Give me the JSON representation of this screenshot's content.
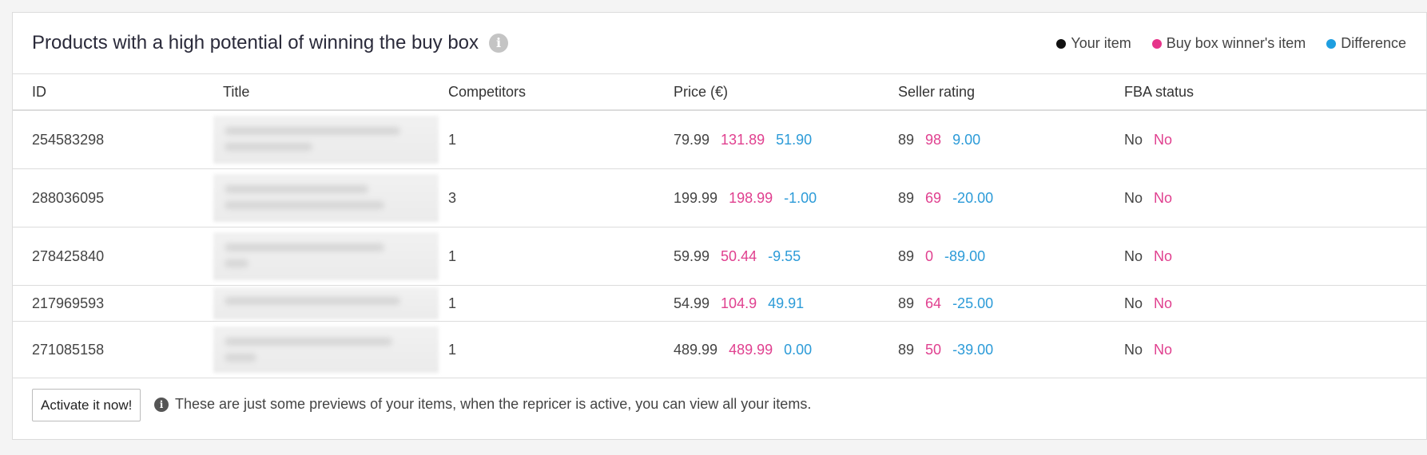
{
  "panel": {
    "title": "Products with a high potential of winning the buy box",
    "info_icon": "i"
  },
  "legend": {
    "your_item": "Your item",
    "winner_item": "Buy box winner's item",
    "difference": "Difference",
    "colors": {
      "your_item": "#111111",
      "winner_item": "#e6348a",
      "difference": "#1e9ee0"
    }
  },
  "table": {
    "headers": {
      "id": "ID",
      "title": "Title",
      "competitors": "Competitors",
      "price": "Price (€)",
      "seller_rating": "Seller rating",
      "fba_status": "FBA status"
    },
    "rows": [
      {
        "id": "254583298",
        "competitors": "1",
        "price": [
          "79.99",
          "131.89",
          "51.90"
        ],
        "rating": [
          "89",
          "98",
          "9.00"
        ],
        "fba": [
          "No",
          "No"
        ]
      },
      {
        "id": "288036095",
        "competitors": "3",
        "price": [
          "199.99",
          "198.99",
          "-1.00"
        ],
        "rating": [
          "89",
          "69",
          "-20.00"
        ],
        "fba": [
          "No",
          "No"
        ]
      },
      {
        "id": "278425840",
        "competitors": "1",
        "price": [
          "59.99",
          "50.44",
          "-9.55"
        ],
        "rating": [
          "89",
          "0",
          "-89.00"
        ],
        "fba": [
          "No",
          "No"
        ]
      },
      {
        "id": "217969593",
        "competitors": "1",
        "price": [
          "54.99",
          "104.9",
          "49.91"
        ],
        "rating": [
          "89",
          "64",
          "-25.00"
        ],
        "fba": [
          "No",
          "No"
        ]
      },
      {
        "id": "271085158",
        "competitors": "1",
        "price": [
          "489.99",
          "489.99",
          "0.00"
        ],
        "rating": [
          "89",
          "50",
          "-39.00"
        ],
        "fba": [
          "No",
          "No"
        ]
      }
    ]
  },
  "footer": {
    "activate_label": "Activate it now!",
    "note": "These are just some previews of your items, when the repricer is active, you can view all your items."
  }
}
